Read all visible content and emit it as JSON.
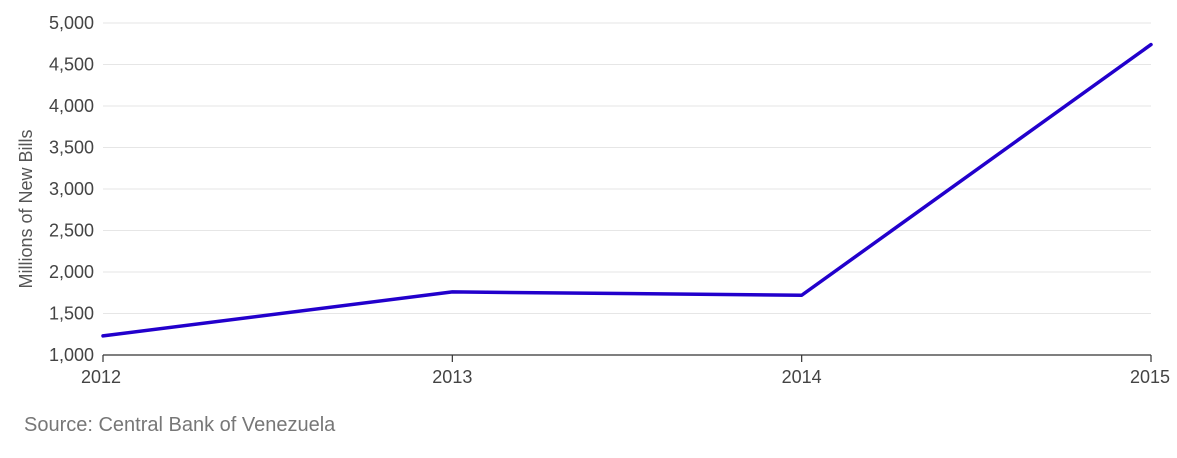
{
  "chart_data": {
    "type": "line",
    "x": [
      2012,
      2013,
      2014,
      2015
    ],
    "x_tick_labels": [
      "2012",
      "2013",
      "2014",
      "2015"
    ],
    "series": [
      {
        "values": [
          1230,
          1760,
          1720,
          4740
        ]
      }
    ],
    "ylabel": "Millions of New Bills",
    "ylim": [
      1000,
      5000
    ],
    "y_ticks": [
      1000,
      1500,
      2000,
      2500,
      3000,
      3500,
      4000,
      4500,
      5000
    ],
    "y_tick_labels": [
      "1,000",
      "1,500",
      "2,000",
      "2,500",
      "3,000",
      "3,500",
      "4,000",
      "4,500",
      "5,000"
    ],
    "grid": true,
    "line_color": "#2200cc"
  },
  "source": "Source: Central Bank of Venezuela"
}
